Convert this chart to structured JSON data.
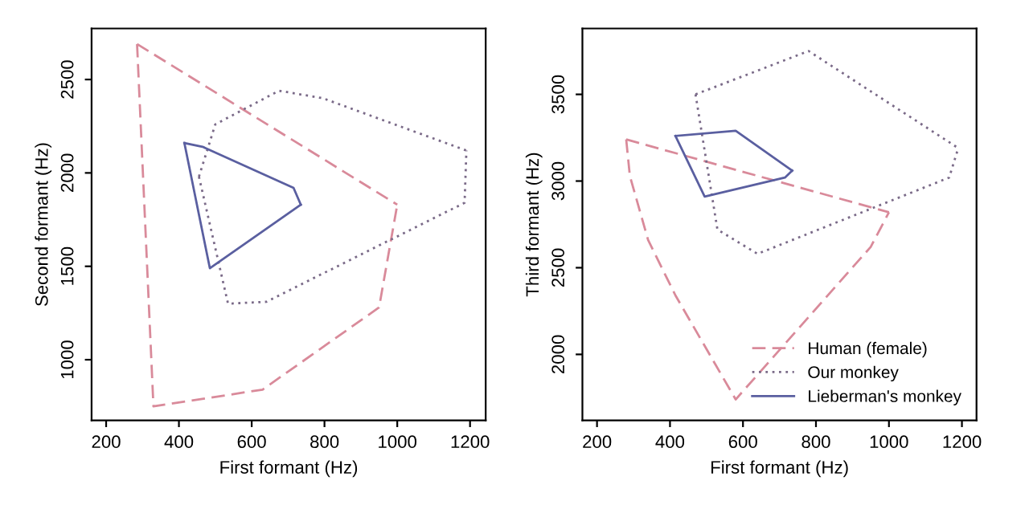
{
  "chart_data": [
    {
      "type": "line",
      "xlabel": "First formant (Hz)",
      "ylabel": "Second formant (Hz)",
      "xlim": [
        160,
        1243
      ],
      "ylim": [
        675,
        2773
      ],
      "xticks": [
        200,
        400,
        600,
        800,
        1000,
        1200
      ],
      "yticks": [
        1000,
        1500,
        2000,
        2500
      ],
      "grid": false,
      "legend": false,
      "marker": "none",
      "series": [
        {
          "color": "#d98a9a",
          "line_style": "dashed",
          "x": [
            285,
            1000
          ],
          "values": [
            2690,
            1830
          ]
        },
        {
          "color": "#d98a9a",
          "line_style": "dashed",
          "x": [
            285,
            330,
            630,
            950,
            1000
          ],
          "values": [
            2690,
            750,
            840,
            1280,
            1830
          ]
        },
        {
          "color": "#7a6a88",
          "line_style": "dotted",
          "x": [
            455,
            500,
            675,
            795,
            1190
          ],
          "values": [
            1980,
            2260,
            2440,
            2400,
            2120
          ]
        },
        {
          "color": "#7a6a88",
          "line_style": "dotted",
          "x": [
            455,
            535,
            640,
            1185,
            1190
          ],
          "values": [
            1980,
            1300,
            1310,
            1840,
            2120
          ]
        },
        {
          "color": "#5a5fa0",
          "line_style": "solid",
          "x": [
            415,
            465,
            715,
            735
          ],
          "values": [
            2160,
            2140,
            1920,
            1830
          ]
        },
        {
          "color": "#5a5fa0",
          "line_style": "solid",
          "x": [
            415,
            485,
            735
          ],
          "values": [
            2160,
            1490,
            1830
          ]
        }
      ]
    },
    {
      "type": "line",
      "xlabel": "First formant (Hz)",
      "ylabel": "Third formant (Hz)",
      "xlim": [
        160,
        1240
      ],
      "ylim": [
        1619,
        3880
      ],
      "xticks": [
        200,
        400,
        600,
        800,
        1000,
        1200
      ],
      "yticks": [
        2000,
        2500,
        3000,
        3500
      ],
      "grid": false,
      "legend": "bottom right",
      "marker": "none",
      "series": [
        {
          "name": "Human (female)",
          "color": "#d98a9a",
          "line_style": "dashed",
          "x": [
            280,
            1000
          ],
          "values": [
            3240,
            2820
          ]
        },
        {
          "color": "#d98a9a",
          "line_style": "dashed",
          "x": [
            280,
            290,
            340,
            415,
            580,
            950,
            1000
          ],
          "values": [
            3240,
            3030,
            2660,
            2340,
            1740,
            2620,
            2820
          ]
        },
        {
          "name": "Our monkey",
          "color": "#7a6a88",
          "line_style": "dotted",
          "x": [
            470,
            780,
            1190
          ],
          "values": [
            3500,
            3750,
            3190
          ]
        },
        {
          "color": "#7a6a88",
          "line_style": "dotted",
          "x": [
            470,
            530,
            640,
            1165,
            1190
          ],
          "values": [
            3500,
            2720,
            2580,
            3020,
            3190
          ]
        },
        {
          "name": "Lieberman's monkey",
          "color": "#5a5fa0",
          "line_style": "solid",
          "x": [
            415,
            580,
            735
          ],
          "values": [
            3260,
            3290,
            3060
          ]
        },
        {
          "color": "#5a5fa0",
          "line_style": "solid",
          "x": [
            415,
            495,
            715,
            735
          ],
          "values": [
            3260,
            2910,
            3020,
            3060
          ]
        }
      ]
    }
  ]
}
